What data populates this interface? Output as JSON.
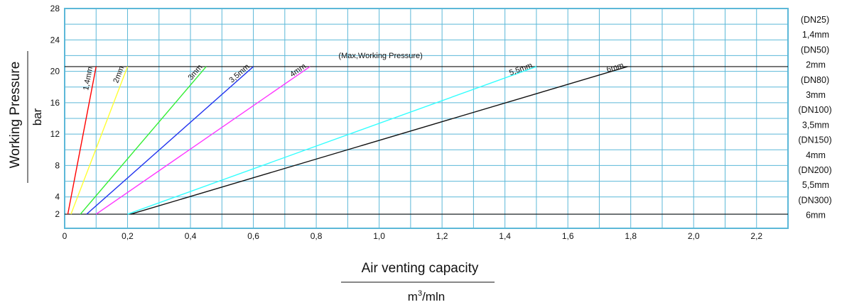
{
  "chart_data": {
    "type": "line",
    "xlabel": "Air venting capacity",
    "xunit_base": "m",
    "xunit_sup": "3",
    "xunit_rest": "/mln",
    "ylabel": "Working Pressure",
    "yunit": "bar",
    "xlim": [
      0,
      2.3
    ],
    "ylim": [
      0,
      28
    ],
    "x_ticks": [
      0,
      0.2,
      0.4,
      0.6,
      0.8,
      1.0,
      1.2,
      1.4,
      1.6,
      1.8,
      2.0,
      2.2
    ],
    "x_tick_labels": [
      "0",
      "0,2",
      "0,4",
      "0,6",
      "0,8",
      "1,0",
      "1,2",
      "1,4",
      "1,6",
      "1,8",
      "2,0",
      "2,2"
    ],
    "x_grid_step": 0.1,
    "y_ticks": [
      4,
      8,
      12,
      16,
      20,
      24,
      28
    ],
    "y_tick_labels": [
      "4",
      "8",
      "12",
      "16",
      "20",
      "24",
      "28"
    ],
    "y_grid": [
      1.8,
      4,
      6,
      8,
      10,
      12,
      14,
      16,
      18,
      20,
      22,
      24,
      26,
      28
    ],
    "extra_y_labels": [
      {
        "y": 1.8,
        "text": "2"
      }
    ],
    "grid": true,
    "annotation": "(Max,Working Pressure)",
    "max_pressure": 20.6,
    "min_pressure": 1.8,
    "series": [
      {
        "name": "1,4mm",
        "x": [
          0.01,
          0.1
        ],
        "y": [
          1.8,
          20.6
        ],
        "color": "#ff0000"
      },
      {
        "name": "2mm",
        "x": [
          0.02,
          0.2
        ],
        "y": [
          1.8,
          20.6
        ],
        "color": "#ffff33"
      },
      {
        "name": "3mm",
        "x": [
          0.05,
          0.45
        ],
        "y": [
          1.8,
          20.6
        ],
        "color": "#33ee33"
      },
      {
        "name": "3,5mm",
        "x": [
          0.07,
          0.6
        ],
        "y": [
          1.8,
          20.6
        ],
        "color": "#2233ee"
      },
      {
        "name": "4mm",
        "x": [
          0.1,
          0.78
        ],
        "y": [
          1.8,
          20.6
        ],
        "color": "#ff33ff"
      },
      {
        "name": "5,5mm",
        "x": [
          0.2,
          1.5
        ],
        "y": [
          1.8,
          20.6
        ],
        "color": "#33ffff"
      },
      {
        "name": "6mm",
        "x": [
          0.21,
          1.79
        ],
        "y": [
          1.8,
          20.6
        ],
        "color": "#111111"
      }
    ],
    "side_legend": [
      "(DN25)",
      "1,4mm",
      "(DN50)",
      "2mm",
      "(DN80)",
      "3mm",
      "(DN100)",
      "3,5mm",
      "(DN150)",
      "4mm",
      "(DN200)",
      "5,5mm",
      "(DN300)",
      "6mm"
    ]
  }
}
